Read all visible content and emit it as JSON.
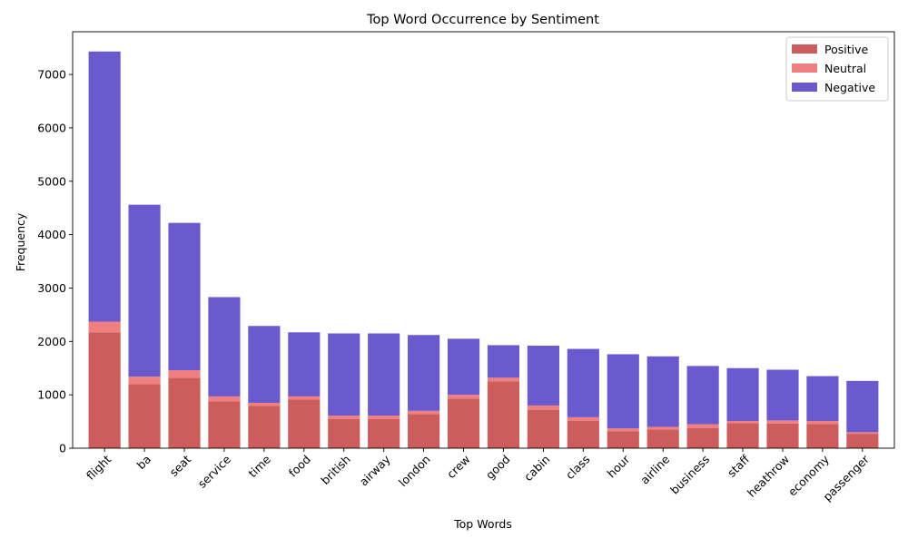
{
  "chart_data": {
    "type": "bar",
    "stacked": true,
    "title": "Top Word Occurrence by Sentiment",
    "xlabel": "Top Words",
    "ylabel": "Frequency",
    "ylim": [
      0,
      7800
    ],
    "yticks": [
      0,
      1000,
      2000,
      3000,
      4000,
      5000,
      6000,
      7000
    ],
    "grid": false,
    "legend_position": "top-right",
    "categories": [
      "flight",
      "ba",
      "seat",
      "service",
      "time",
      "food",
      "british",
      "airway",
      "london",
      "crew",
      "good",
      "cabin",
      "class",
      "hour",
      "airline",
      "business",
      "staff",
      "heathrow",
      "economy",
      "passenger"
    ],
    "series": [
      {
        "name": "Positive",
        "color": "#cd5c5c",
        "values": [
          2170,
          1200,
          1320,
          880,
          790,
          910,
          550,
          550,
          640,
          930,
          1250,
          720,
          510,
          320,
          350,
          380,
          470,
          460,
          450,
          270
        ]
      },
      {
        "name": "Neutral",
        "color": "#f08080",
        "values": [
          200,
          140,
          140,
          90,
          60,
          60,
          60,
          60,
          60,
          70,
          70,
          80,
          70,
          50,
          50,
          70,
          40,
          60,
          60,
          30
        ]
      },
      {
        "name": "Negative",
        "color": "#6a5acd",
        "values": [
          5060,
          3220,
          2760,
          1860,
          1440,
          1200,
          1540,
          1540,
          1420,
          1050,
          610,
          1120,
          1280,
          1390,
          1320,
          1090,
          990,
          950,
          840,
          960
        ]
      }
    ]
  }
}
